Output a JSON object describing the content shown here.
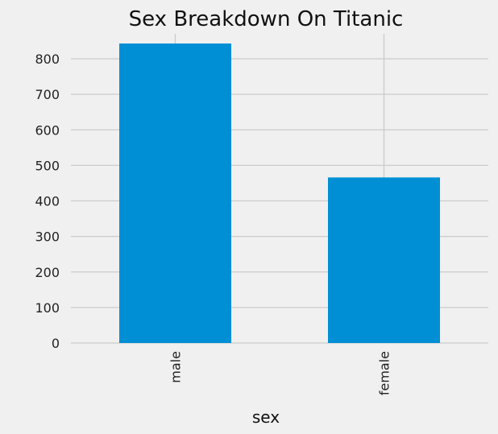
{
  "chart_data": {
    "type": "bar",
    "title": "Sex Breakdown On Titanic",
    "xlabel": "sex",
    "ylabel": "",
    "categories": [
      "male",
      "female"
    ],
    "values": [
      843,
      466
    ],
    "ylim": [
      0,
      885
    ],
    "yticks": [
      0,
      100,
      200,
      300,
      400,
      500,
      600,
      700,
      800
    ],
    "grid": true,
    "legend": "none",
    "colors": {
      "bar": "#008fd5",
      "background": "#f0f0f0",
      "grid": "#cbcbcb"
    }
  }
}
